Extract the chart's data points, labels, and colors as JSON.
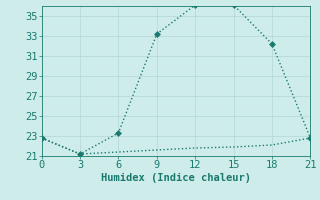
{
  "xlabel": "Humidex (Indice chaleur)",
  "ylabel": "",
  "background_color": "#ceecea",
  "grid_color": "#b8dbd8",
  "line_color": "#1a7a6e",
  "series1_x": [
    0,
    3,
    6,
    9,
    12,
    15,
    18,
    21
  ],
  "series1_y": [
    22.8,
    21.2,
    23.3,
    33.2,
    36.1,
    36.1,
    32.2,
    22.8
  ],
  "series2_x": [
    0,
    3,
    6,
    9,
    12,
    15,
    18,
    21
  ],
  "series2_y": [
    22.8,
    21.2,
    21.4,
    21.6,
    21.8,
    21.9,
    22.1,
    22.8
  ],
  "xlim": [
    0,
    21
  ],
  "ylim": [
    21,
    36
  ],
  "xticks": [
    0,
    3,
    6,
    9,
    12,
    15,
    18,
    21
  ],
  "yticks": [
    21,
    23,
    25,
    27,
    29,
    31,
    33,
    35
  ],
  "marker": "D",
  "markersize": 3,
  "linewidth": 1.0,
  "fontsize": 7.5
}
